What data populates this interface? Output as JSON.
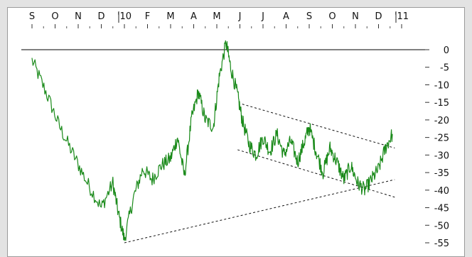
{
  "chart_data": {
    "type": "line",
    "x_axis": {
      "position": "top",
      "months": [
        "S",
        "O",
        "N",
        "D",
        "'10",
        "F",
        "M",
        "A",
        "M",
        "J",
        "J",
        "A",
        "S",
        "O",
        "N",
        "D",
        "'11"
      ]
    },
    "y_axis": {
      "position": "right",
      "ylim": [
        -57,
        3
      ],
      "ticks": [
        0,
        -5,
        -10,
        -15,
        -20,
        -25,
        -30,
        -35,
        -40,
        -45,
        -50,
        -55
      ],
      "tick_labels": [
        "0",
        "-5",
        "-10",
        "-15",
        "-20",
        "-25",
        "-30",
        "-35",
        "-40",
        "-45",
        "-50",
        "-55"
      ]
    },
    "zero_line": true,
    "grid": false,
    "series": [
      {
        "color": "#1a8a1a",
        "description_points": [
          {
            "t": 0.0,
            "y": -3
          },
          {
            "t": 0.6,
            "y": -12
          },
          {
            "t": 1.2,
            "y": -22
          },
          {
            "t": 1.8,
            "y": -30
          },
          {
            "t": 2.4,
            "y": -38
          },
          {
            "t": 3.0,
            "y": -45
          },
          {
            "t": 3.5,
            "y": -38
          },
          {
            "t": 3.75,
            "y": -47
          },
          {
            "t": 4.0,
            "y": -54
          },
          {
            "t": 4.4,
            "y": -42
          },
          {
            "t": 4.8,
            "y": -34
          },
          {
            "t": 5.2,
            "y": -37
          },
          {
            "t": 5.6,
            "y": -33
          },
          {
            "t": 6.0,
            "y": -31
          },
          {
            "t": 6.3,
            "y": -25
          },
          {
            "t": 6.6,
            "y": -36
          },
          {
            "t": 6.9,
            "y": -20
          },
          {
            "t": 7.2,
            "y": -12
          },
          {
            "t": 7.5,
            "y": -20
          },
          {
            "t": 7.85,
            "y": -22
          },
          {
            "t": 8.1,
            "y": -8
          },
          {
            "t": 8.4,
            "y": 2
          },
          {
            "t": 8.6,
            "y": -5
          },
          {
            "t": 8.9,
            "y": -13
          },
          {
            "t": 9.1,
            "y": -20
          },
          {
            "t": 9.4,
            "y": -27
          },
          {
            "t": 9.7,
            "y": -30
          },
          {
            "t": 10.0,
            "y": -25
          },
          {
            "t": 10.3,
            "y": -29
          },
          {
            "t": 10.6,
            "y": -24
          },
          {
            "t": 10.9,
            "y": -30
          },
          {
            "t": 11.2,
            "y": -26
          },
          {
            "t": 11.5,
            "y": -32
          },
          {
            "t": 11.8,
            "y": -26
          },
          {
            "t": 12.0,
            "y": -22
          },
          {
            "t": 12.3,
            "y": -29
          },
          {
            "t": 12.6,
            "y": -35
          },
          {
            "t": 12.9,
            "y": -28
          },
          {
            "t": 13.2,
            "y": -32
          },
          {
            "t": 13.5,
            "y": -37
          },
          {
            "t": 13.8,
            "y": -33
          },
          {
            "t": 14.1,
            "y": -38
          },
          {
            "t": 14.4,
            "y": -40
          },
          {
            "t": 14.7,
            "y": -37
          },
          {
            "t": 15.0,
            "y": -34
          },
          {
            "t": 15.3,
            "y": -28
          },
          {
            "t": 15.6,
            "y": -24
          }
        ]
      }
    ],
    "trendlines": [
      {
        "style": "dashed",
        "from": {
          "t": 4.0,
          "y": -55
        },
        "to": {
          "t": 15.7,
          "y": -37
        }
      },
      {
        "style": "dashed",
        "from": {
          "t": 9.1,
          "y": -15.5
        },
        "to": {
          "t": 15.7,
          "y": -28
        }
      },
      {
        "style": "dashed",
        "from": {
          "t": 8.9,
          "y": -28.5
        },
        "to": {
          "t": 15.7,
          "y": -42
        }
      }
    ]
  }
}
